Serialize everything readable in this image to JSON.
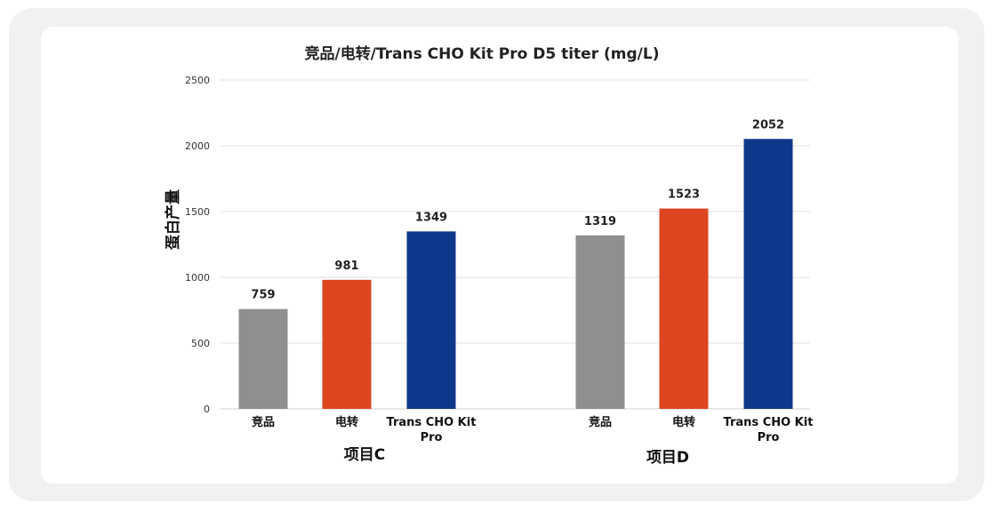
{
  "chart_data": {
    "type": "bar",
    "title": "竞品/电转/Trans CHO Kit Pro D5 titer (mg/L)",
    "ylabel": "蛋白产量",
    "ylim": [
      0,
      2500
    ],
    "yticks": [
      0,
      500,
      1000,
      1500,
      2000,
      2500
    ],
    "grid": true,
    "groups": [
      {
        "name": "项目C",
        "bars": [
          {
            "category": "竞品",
            "value": 759,
            "color": "#8f8f8f"
          },
          {
            "category": "电转",
            "value": 981,
            "color": "#dc4520"
          },
          {
            "category": "Trans CHO Kit Pro",
            "value": 1349,
            "color": "#0f388a"
          }
        ]
      },
      {
        "name": "项目D",
        "bars": [
          {
            "category": "竞品",
            "value": 1319,
            "color": "#8f8f8f"
          },
          {
            "category": "电转",
            "value": 1523,
            "color": "#dc4520"
          },
          {
            "category": "Trans CHO Kit Pro",
            "value": 2052,
            "color": "#0f388a"
          }
        ]
      }
    ]
  }
}
